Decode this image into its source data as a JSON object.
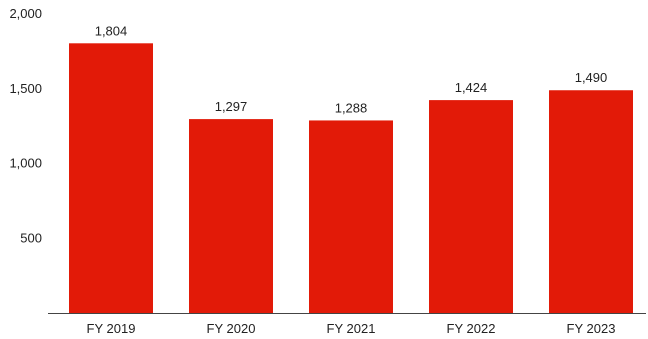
{
  "chart_data": {
    "type": "bar",
    "categories": [
      "FY 2019",
      "FY 2020",
      "FY 2021",
      "FY 2022",
      "FY 2023"
    ],
    "values": [
      1804,
      1297,
      1288,
      1424,
      1490
    ],
    "data_labels": [
      "1,804",
      "1,297",
      "1,288",
      "1,424",
      "1,490"
    ],
    "y_ticks": [
      {
        "value": 500,
        "label": "500"
      },
      {
        "value": 1000,
        "label": "1,000"
      },
      {
        "value": 1500,
        "label": "1,500"
      },
      {
        "value": 2000,
        "label": "2,000"
      }
    ],
    "ylim": [
      0,
      2000
    ],
    "grid": false,
    "title": "",
    "xlabel": "",
    "ylabel": "",
    "bar_color": "#e21a08",
    "axis_color": "#444444"
  }
}
